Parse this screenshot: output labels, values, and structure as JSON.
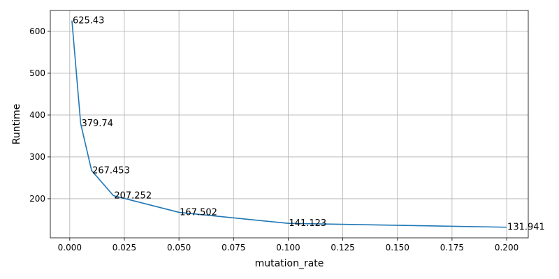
{
  "chart_data": {
    "type": "line",
    "title": "",
    "xlabel": "mutation_rate",
    "ylabel": "Runtime",
    "xlim": [
      -0.0089,
      0.2099
    ],
    "ylim": [
      106.5,
      650.0
    ],
    "grid": true,
    "x_ticks": [
      0.0,
      0.025,
      0.05,
      0.075,
      0.1,
      0.125,
      0.15,
      0.175,
      0.2
    ],
    "x_tick_labels": [
      "0.000",
      "0.025",
      "0.050",
      "0.075",
      "0.100",
      "0.125",
      "0.150",
      "0.175",
      "0.200"
    ],
    "y_ticks": [
      200,
      300,
      400,
      500,
      600
    ],
    "y_tick_labels": [
      "200",
      "300",
      "400",
      "500",
      "600"
    ],
    "series": [
      {
        "color": "#1f77b4",
        "x": [
          0.001,
          0.005,
          0.01,
          0.02,
          0.05,
          0.1,
          0.2
        ],
        "y": [
          625.43,
          379.74,
          267.453,
          207.252,
          167.502,
          141.123,
          131.941
        ],
        "labels": [
          "625.43",
          "379.74",
          "267.453",
          "207.252",
          "167.502",
          "141.123",
          "131.941"
        ]
      }
    ]
  }
}
